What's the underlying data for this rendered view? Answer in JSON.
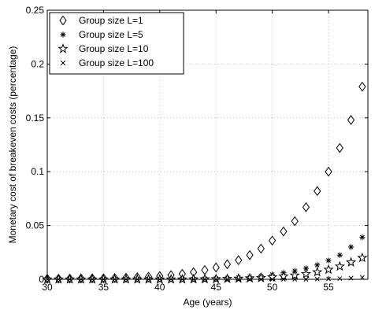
{
  "chart_data": {
    "type": "scatter",
    "xlabel": "Age (years)",
    "ylabel": "Monetary cost of breakeven costs (percentage)",
    "xlim": [
      30,
      58.5
    ],
    "ylim": [
      0,
      0.25
    ],
    "grid": true,
    "legend_position": "top-left",
    "x_ticks": [
      30,
      35,
      40,
      45,
      50,
      55
    ],
    "x_tick_labels": [
      "30",
      "35",
      "40",
      "45",
      "50",
      "55"
    ],
    "y_ticks": [
      0,
      0.05,
      0.1,
      0.15,
      0.2,
      0.25
    ],
    "y_tick_labels": [
      "0",
      "0.05",
      "0.1",
      "0.15",
      "0.2",
      "0.25"
    ],
    "x": [
      30,
      31,
      32,
      33,
      34,
      35,
      36,
      37,
      38,
      39,
      40,
      41,
      42,
      43,
      44,
      45,
      46,
      47,
      48,
      49,
      50,
      51,
      52,
      53,
      54,
      55,
      56,
      57,
      58
    ],
    "series": [
      {
        "name": "Group size L=1",
        "marker": "diamond",
        "values": [
          0.0005,
          0.0006,
          0.0007,
          0.0008,
          0.0009,
          0.001,
          0.0012,
          0.0015,
          0.0019,
          0.0024,
          0.003,
          0.0039,
          0.005,
          0.0066,
          0.0086,
          0.011,
          0.014,
          0.0178,
          0.0225,
          0.0285,
          0.036,
          0.0445,
          0.054,
          0.067,
          0.082,
          0.1,
          0.122,
          0.148,
          0.179
        ]
      },
      {
        "name": "Group size L=5",
        "marker": "asterisk",
        "values": [
          0,
          0,
          0,
          0,
          0,
          0,
          0,
          0,
          0,
          0,
          0.0001,
          0.0002,
          0.0003,
          0.0004,
          0.0006,
          0.0008,
          0.0012,
          0.0017,
          0.0024,
          0.0033,
          0.0045,
          0.006,
          0.0078,
          0.0102,
          0.0133,
          0.0175,
          0.0225,
          0.03,
          0.039
        ]
      },
      {
        "name": "Group size L=10",
        "marker": "star",
        "values": [
          0,
          0,
          0,
          0,
          0,
          0,
          0,
          0,
          0,
          0,
          0,
          0,
          0,
          0.0001,
          0.0002,
          0.0003,
          0.0005,
          0.0007,
          0.001,
          0.0014,
          0.002,
          0.0027,
          0.0037,
          0.005,
          0.0067,
          0.009,
          0.012,
          0.0158,
          0.02
        ]
      },
      {
        "name": "Group size L=100",
        "marker": "x",
        "values": [
          0,
          0,
          0,
          0,
          0,
          0,
          0,
          0,
          0,
          0,
          0,
          0,
          0,
          0,
          0,
          0,
          0,
          0,
          0,
          0,
          0,
          0,
          0,
          0,
          0.0002,
          0.0004,
          0.0007,
          0.0011,
          0.0017
        ]
      }
    ]
  }
}
